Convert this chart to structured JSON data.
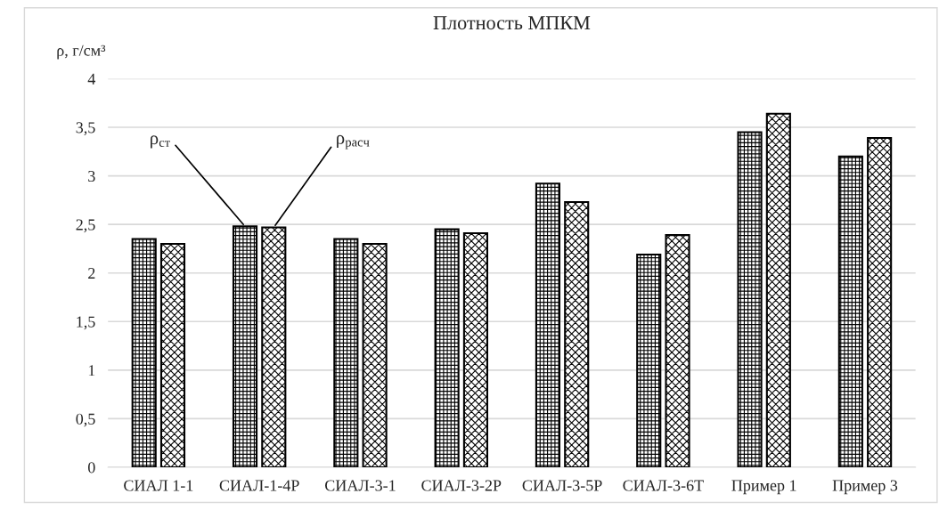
{
  "chart_data": {
    "type": "bar",
    "title": "Плотность МПКМ",
    "ylabel": "ρ, г/см³",
    "categories": [
      "СИАЛ 1-1",
      "СИАЛ-1-4Р",
      "СИАЛ-3-1",
      "СИАЛ-3-2Р",
      "СИАЛ-3-5Р",
      "СИАЛ-3-6Т",
      "Пример 1",
      "Пример 3"
    ],
    "series": [
      {
        "name": "ρ$_{ст}$",
        "color": "#000000",
        "values": [
          2.35,
          2.48,
          2.35,
          2.45,
          2.92,
          2.19,
          3.45,
          3.2
        ]
      },
      {
        "name": "ρ$_{расч}$",
        "color": "#000000",
        "values": [
          2.3,
          2.47,
          2.3,
          2.41,
          2.73,
          2.39,
          3.64,
          3.39
        ]
      }
    ],
    "ylim": [
      0,
      4
    ],
    "yticks": [
      0,
      {
        "value": 0.5,
        "label": "0,5"
      },
      1,
      {
        "value": 1.5,
        "label": "1,5"
      },
      2,
      {
        "value": 2.5,
        "label": "2,5"
      },
      3,
      {
        "value": 3.5,
        "label": "3,5"
      },
      4
    ],
    "grid": "y",
    "legend": false
  }
}
